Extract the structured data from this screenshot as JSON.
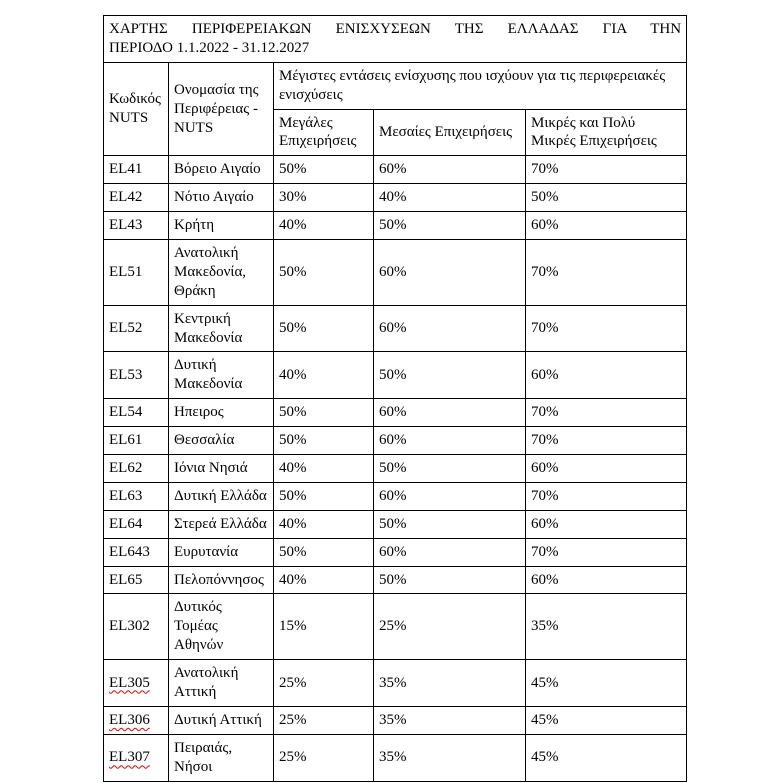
{
  "document": {
    "title_line1": "ΧΑΡΤΗΣ ΠΕΡΙΦΕΡΕΙΑΚΩΝ ΕΝΙΣΧΥΣΕΩΝ ΤΗΣ ΕΛΛΑΔΑΣ ΓΙΑ ΤΗΝ",
    "title_line2": "ΠΕΡΙΟΔΟ 1.1.2022 - 31.12.2027"
  },
  "headers": {
    "nuts_code": "Κωδικός NUTS",
    "region_name": "Ονομασία της Περιφέρειας - NUTS",
    "aid_intensities": "Μέγιστες εντάσεις ενίσχυσης που ισχύουν για τις περιφερειακές ενισχύσεις",
    "large_enterprises": "Μεγάλες Επιχειρήσεις",
    "medium_enterprises": "Μεσαίες Επιχειρήσεις",
    "small_enterprises": "Μικρές και Πολύ Μικρές Επιχειρήσεις"
  },
  "rows": [
    {
      "code": "EL41",
      "region": "Βόρειο Αιγαίο",
      "large": "50%",
      "medium": "60%",
      "small": "70%",
      "spellcheck": false
    },
    {
      "code": "EL42",
      "region": "Νότιο Αιγαίο",
      "large": "30%",
      "medium": "40%",
      "small": "50%",
      "spellcheck": false
    },
    {
      "code": "EL43",
      "region": "Κρήτη",
      "large": "40%",
      "medium": "50%",
      "small": "60%",
      "spellcheck": false
    },
    {
      "code": "EL51",
      "region": "Ανατολική Μακεδονία, Θράκη",
      "large": "50%",
      "medium": "60%",
      "small": "70%",
      "spellcheck": false
    },
    {
      "code": "EL52",
      "region": "Κεντρική Μακεδονία",
      "large": "50%",
      "medium": "60%",
      "small": "70%",
      "spellcheck": false
    },
    {
      "code": "EL53",
      "region": "Δυτική Μακεδονία",
      "large": "40%",
      "medium": "50%",
      "small": "60%",
      "spellcheck": false
    },
    {
      "code": "EL54",
      "region": "Ηπειρος",
      "large": "50%",
      "medium": "60%",
      "small": "70%",
      "spellcheck": false
    },
    {
      "code": "EL61",
      "region": "Θεσσαλία",
      "large": "50%",
      "medium": "60%",
      "small": "70%",
      "spellcheck": false
    },
    {
      "code": "EL62",
      "region": "Ιόνια Νησιά",
      "large": "40%",
      "medium": "50%",
      "small": "60%",
      "spellcheck": false
    },
    {
      "code": "EL63",
      "region": "Δυτική Ελλάδα",
      "large": "50%",
      "medium": "60%",
      "small": "70%",
      "spellcheck": false
    },
    {
      "code": "EL64",
      "region": "Στερεά Ελλάδα",
      "large": "40%",
      "medium": "50%",
      "small": "60%",
      "spellcheck": false
    },
    {
      "code": "EL643",
      "region": "Ευρυτανία",
      "large": "50%",
      "medium": "60%",
      "small": "70%",
      "spellcheck": false
    },
    {
      "code": "EL65",
      "region": "Πελοπόννησος",
      "large": "40%",
      "medium": "50%",
      "small": "60%",
      "spellcheck": false
    },
    {
      "code": "EL302",
      "region": "Δυτικός Τομέας Αθηνών",
      "large": "15%",
      "medium": "25%",
      "small": "35%",
      "spellcheck": false
    },
    {
      "code": "EL305",
      "region": "Ανατολική Αττική",
      "large": "25%",
      "medium": "35%",
      "small": "45%",
      "spellcheck": true
    },
    {
      "code": "EL306",
      "region": "Δυτική Αττική",
      "large": "25%",
      "medium": "35%",
      "small": "45%",
      "spellcheck": true
    },
    {
      "code": "EL307",
      "region": "Πειραιάς, Νήσοι",
      "large": "25%",
      "medium": "35%",
      "small": "45%",
      "spellcheck": true
    }
  ],
  "colors": {
    "border": "#000000",
    "text": "#000000",
    "background": "#ffffff",
    "spellcheck_underline": "#e00000"
  }
}
